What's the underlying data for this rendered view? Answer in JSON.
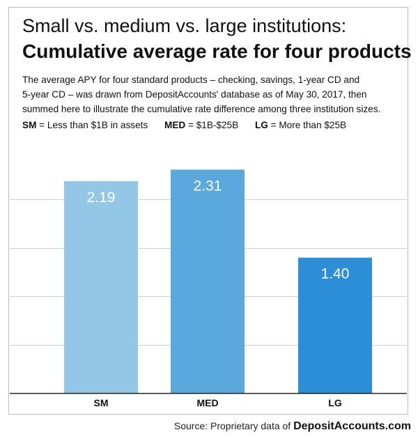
{
  "header": {
    "title_line1": "Small vs. medium vs. large institutions:",
    "title_line2": "Cumulative average rate for four products",
    "description_lines": [
      "The average APY for four standard products – checking, savings, 1-year CD and",
      "5-year CD – was drawn from DepositAccounts' database as of May 30, 2017, then",
      "summed here to illustrate the cumulative rate difference among three institution sizes."
    ]
  },
  "legend": {
    "items": [
      {
        "key": "SM",
        "text": " = Less than $1B in assets"
      },
      {
        "key": "MED",
        "text": " = $1B-$25B"
      },
      {
        "key": "LG",
        "text": " = More than $25B"
      }
    ]
  },
  "chart_data": {
    "type": "bar",
    "title": "Cumulative average rate for four products",
    "categories": [
      "SM",
      "MED",
      "LG"
    ],
    "values": [
      2.19,
      2.31,
      1.4
    ],
    "value_labels": [
      "2.19",
      "2.31",
      "1.40"
    ],
    "colors": [
      "#94c6e6",
      "#5aa8dc",
      "#2b8ed6"
    ],
    "ylim": [
      0,
      2.5
    ],
    "gridlines": [
      0.5,
      1.0,
      1.5,
      2.0
    ],
    "xlabel": "",
    "ylabel": "",
    "grid": true
  },
  "footer": {
    "source_prefix": "Source: Proprietary data of ",
    "source_brand": "DepositAccounts.com"
  }
}
